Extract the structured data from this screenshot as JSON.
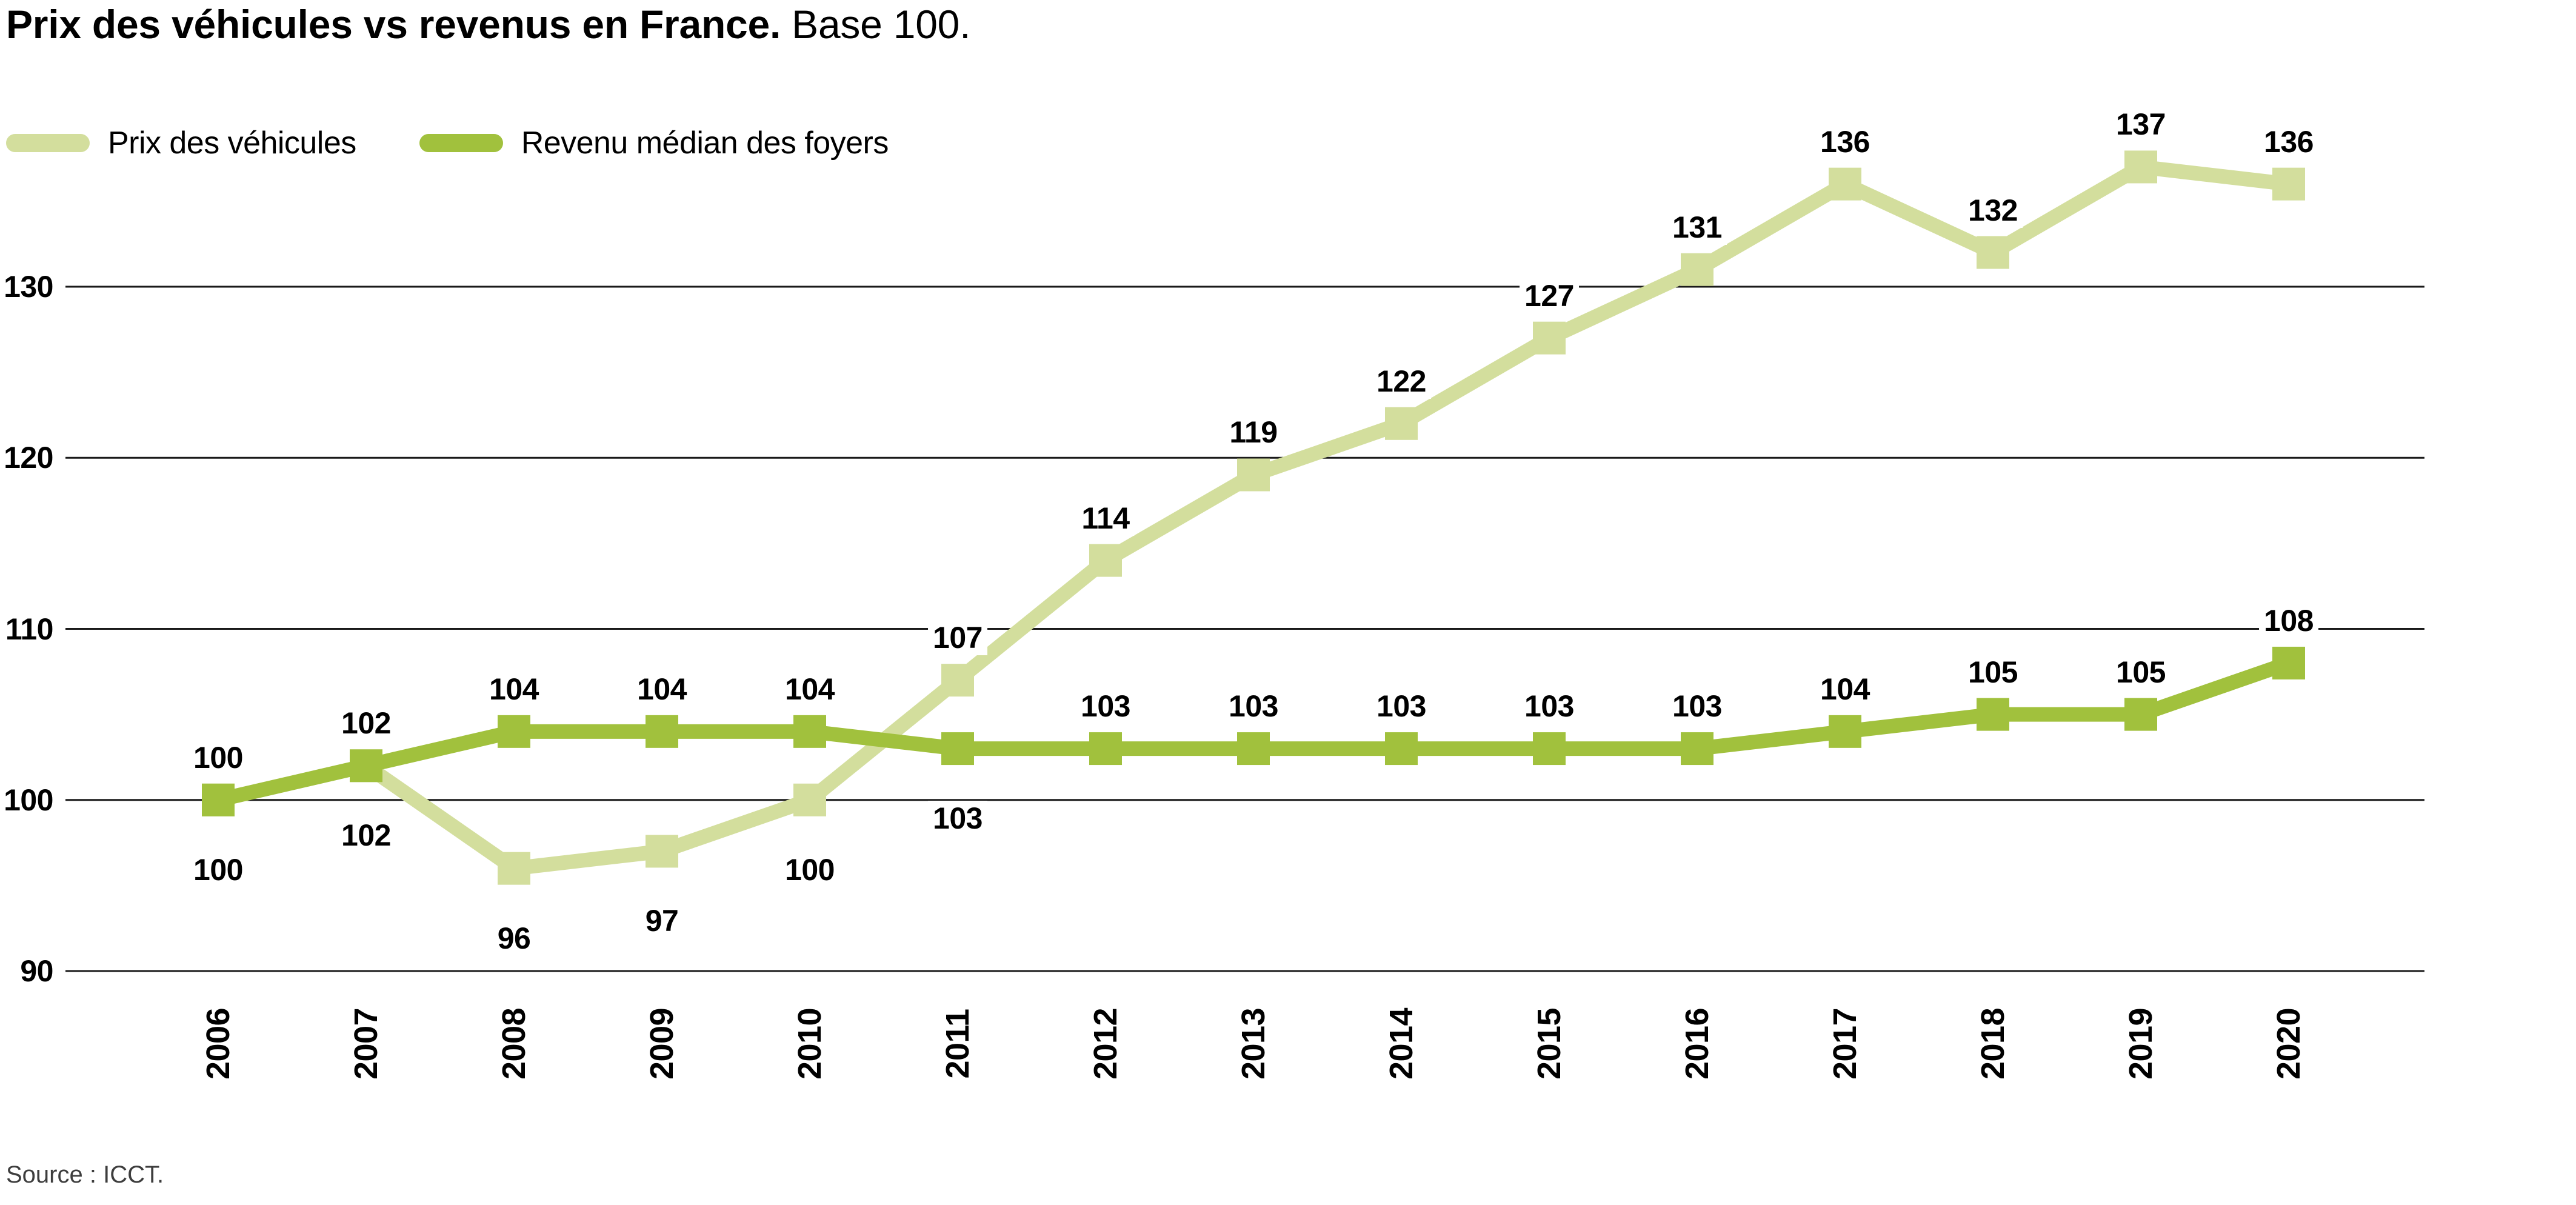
{
  "title": {
    "main": "Prix des véhicules vs revenus en France.",
    "suffix": " Base 100."
  },
  "legend": [
    {
      "label": "Prix des véhicules",
      "color": "#d3de9d"
    },
    {
      "label": "Revenu médian des foyers",
      "color": "#a1c13d"
    }
  ],
  "source": "Source : ICCT.",
  "chart_data": {
    "type": "line",
    "title": "Prix des véhicules vs revenus en France.",
    "subtitle": "Base 100.",
    "x": [
      2006,
      2007,
      2008,
      2009,
      2010,
      2011,
      2012,
      2013,
      2014,
      2015,
      2016,
      2017,
      2018,
      2019,
      2020
    ],
    "series": [
      {
        "name": "Prix des véhicules",
        "color": "#d3de9d",
        "values": [
          100,
          102,
          96,
          97,
          100,
          107,
          114,
          119,
          122,
          127,
          131,
          136,
          132,
          137,
          136
        ],
        "label_positions": [
          "below",
          "below",
          "below",
          "below",
          "below",
          "above",
          "above",
          "above",
          "above",
          "above",
          "above",
          "above",
          "above",
          "above",
          "above"
        ]
      },
      {
        "name": "Revenu médian des foyers",
        "color": "#a1c13d",
        "values": [
          100,
          102,
          104,
          104,
          104,
          103,
          103,
          103,
          103,
          103,
          103,
          104,
          105,
          105,
          108
        ],
        "label_positions": [
          "above",
          "above",
          "above",
          "above",
          "above",
          "below",
          "above",
          "above",
          "above",
          "above",
          "above",
          "above",
          "above",
          "above",
          "above"
        ]
      }
    ],
    "ylim": [
      86,
      141
    ],
    "yticks": [
      90,
      100,
      110,
      120,
      130
    ],
    "grid": "horizontal-only",
    "gridline_color": "#1a1a1a",
    "legend_position": "top-left",
    "marker": "square",
    "xlabel": "",
    "ylabel": "",
    "source": "Source : ICCT."
  }
}
